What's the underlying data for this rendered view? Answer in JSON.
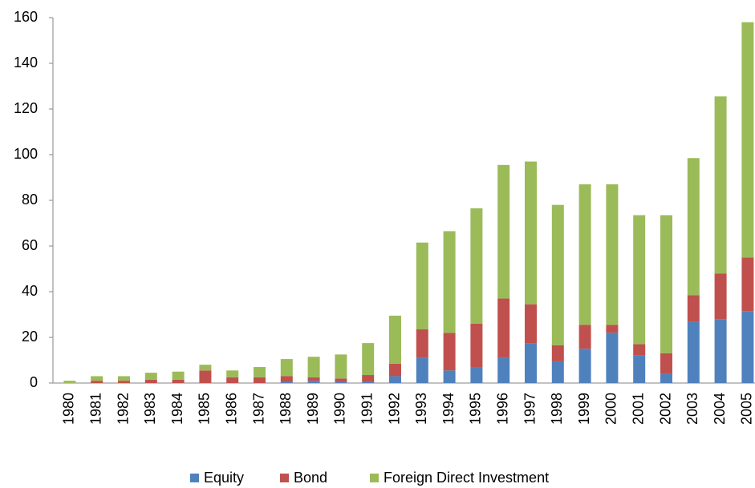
{
  "chart_data": {
    "type": "stacked_bar",
    "categories": [
      "1980",
      "1981",
      "1982",
      "1983",
      "1984",
      "1985",
      "1986",
      "1987",
      "1988",
      "1989",
      "1990",
      "1991",
      "1992",
      "1993",
      "1994",
      "1995",
      "1996",
      "1997",
      "1998",
      "1999",
      "2000",
      "2001",
      "2002",
      "2003",
      "2004",
      "2005"
    ],
    "series": [
      {
        "name": "Equity",
        "color": "#4f81bd",
        "values": [
          0,
          0,
          0,
          0,
          0,
          0,
          0,
          0,
          0.5,
          1,
          0.5,
          0.5,
          3,
          11,
          5.5,
          7,
          11,
          17.5,
          9.5,
          15,
          22,
          12,
          4,
          27,
          28,
          31.5
        ]
      },
      {
        "name": "Bond",
        "color": "#c0504d",
        "values": [
          0,
          1,
          1,
          1.5,
          1.5,
          5.5,
          2.5,
          2.5,
          2.5,
          1.5,
          1.5,
          3,
          5.5,
          12.5,
          16.5,
          19,
          26,
          17,
          7,
          10.5,
          3.5,
          5,
          9,
          11.5,
          20,
          23.5
        ]
      },
      {
        "name": "Foreign Direct Investment",
        "color": "#9bbb59",
        "values": [
          1,
          2,
          2,
          3,
          3.5,
          2.5,
          3,
          4.5,
          7.5,
          9,
          10.5,
          14,
          21,
          38,
          44.5,
          50.5,
          58.5,
          62.5,
          61.5,
          61.5,
          61.5,
          56.5,
          60.5,
          60,
          77.5,
          103
        ]
      }
    ],
    "ylim": [
      0,
      160
    ],
    "yticks": [
      0,
      20,
      40,
      60,
      80,
      100,
      120,
      140,
      160
    ],
    "legend": "bottom"
  }
}
